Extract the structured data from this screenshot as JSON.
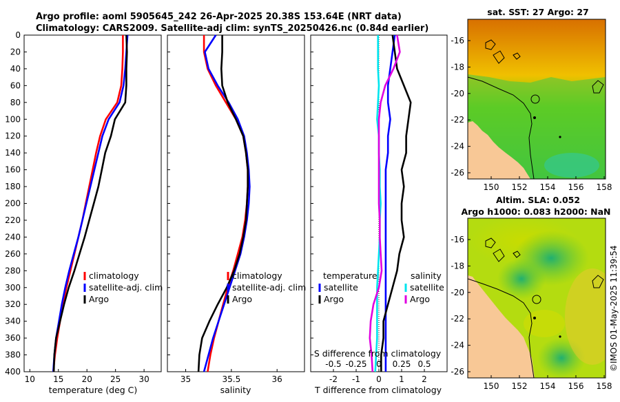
{
  "title": {
    "line1": "Argo profile: aoml 5905645_242 26-Apr-2025 20.38S 153.64E (NRT data)",
    "line2": "Climatology: CARS2009. Satellite-adj clim: synTS_20250426.nc (0.84d earlier)"
  },
  "depth_axis": {
    "range": [
      0,
      400
    ],
    "ticks": [
      "0",
      "20",
      "40",
      "60",
      "80",
      "100",
      "120",
      "140",
      "160",
      "180",
      "200",
      "220",
      "240",
      "260",
      "280",
      "300",
      "320",
      "340",
      "360",
      "380",
      "400"
    ]
  },
  "colors": {
    "red": "#ff0000",
    "blue": "#0000ff",
    "black": "#000000",
    "cyan": "#00e5ee",
    "magenta": "#e000e0",
    "ocean_high": "#f0f000",
    "land": "#f8c896"
  },
  "chart_data": [
    {
      "type": "line",
      "name": "temperature-profile",
      "xlabel": "temperature (deg C)",
      "xlim": [
        9,
        33
      ],
      "xticks": [
        "10",
        "15",
        "20",
        "25",
        "30"
      ],
      "ylabel_ticks": "depth",
      "legend": [
        "climatology",
        "satellite-adj. clim",
        "Argo"
      ],
      "series": [
        {
          "name": "climatology",
          "color": "red",
          "depth": [
            0,
            20,
            40,
            60,
            80,
            100,
            120,
            140,
            160,
            180,
            200,
            220,
            240,
            260,
            280,
            300,
            320,
            340,
            360,
            380,
            400
          ],
          "values": [
            26.3,
            26.3,
            26.2,
            26.0,
            25.3,
            23.3,
            22.3,
            21.6,
            21.0,
            20.4,
            19.8,
            19.2,
            18.5,
            17.8,
            17.1,
            16.4,
            15.8,
            15.3,
            14.8,
            14.4,
            14.1
          ]
        },
        {
          "name": "satellite-adj. clim",
          "color": "blue",
          "depth": [
            0,
            20,
            40,
            60,
            80,
            100,
            120,
            140,
            160,
            180,
            200,
            220,
            240,
            260,
            280,
            300,
            320,
            340,
            360,
            380,
            400
          ],
          "values": [
            27.1,
            26.9,
            26.7,
            26.4,
            25.7,
            23.8,
            22.7,
            22.0,
            21.3,
            20.6,
            19.9,
            19.2,
            18.5,
            17.7,
            16.9,
            16.2,
            15.6,
            15.1,
            14.6,
            14.3,
            14.1
          ]
        },
        {
          "name": "Argo",
          "color": "black",
          "depth": [
            0,
            20,
            40,
            60,
            80,
            100,
            120,
            140,
            160,
            180,
            200,
            220,
            240,
            260,
            280,
            300,
            320,
            340,
            360,
            380,
            400
          ],
          "values": [
            26.9,
            27.0,
            26.9,
            26.9,
            26.7,
            24.9,
            24.2,
            23.2,
            22.6,
            22.0,
            21.2,
            20.4,
            19.6,
            18.7,
            17.8,
            16.8,
            16.0,
            15.3,
            14.6,
            14.3,
            14.2
          ]
        }
      ]
    },
    {
      "type": "line",
      "name": "salinity-profile",
      "xlabel": "salinity",
      "xlim": [
        34.8,
        36.3
      ],
      "xticks": [
        "35",
        "35.5",
        "36"
      ],
      "legend": [
        "climatology",
        "satellite-adj. clim",
        "Argo"
      ],
      "series": [
        {
          "name": "climatology",
          "color": "red",
          "depth": [
            0,
            20,
            40,
            60,
            80,
            100,
            120,
            140,
            160,
            180,
            200,
            220,
            240,
            260,
            280,
            300,
            320,
            340,
            360,
            380,
            400
          ],
          "values": [
            35.2,
            35.2,
            35.24,
            35.33,
            35.44,
            35.55,
            35.63,
            35.66,
            35.68,
            35.68,
            35.67,
            35.65,
            35.62,
            35.57,
            35.52,
            35.46,
            35.41,
            35.36,
            35.31,
            35.27,
            35.24
          ]
        },
        {
          "name": "satellite-adj. clim",
          "color": "blue",
          "depth": [
            0,
            20,
            40,
            60,
            80,
            100,
            120,
            140,
            160,
            180,
            200,
            220,
            240,
            260,
            280,
            300,
            320,
            340,
            360,
            380,
            400
          ],
          "values": [
            35.33,
            35.21,
            35.25,
            35.35,
            35.47,
            35.57,
            35.64,
            35.67,
            35.69,
            35.7,
            35.69,
            35.67,
            35.64,
            35.6,
            35.54,
            35.48,
            35.42,
            35.36,
            35.3,
            35.25,
            35.2
          ]
        },
        {
          "name": "Argo",
          "color": "black",
          "depth": [
            0,
            20,
            40,
            60,
            80,
            100,
            120,
            140,
            160,
            180,
            200,
            220,
            240,
            260,
            280,
            300,
            320,
            340,
            360,
            380,
            400
          ],
          "values": [
            35.4,
            35.4,
            35.39,
            35.4,
            35.46,
            35.55,
            35.63,
            35.66,
            35.68,
            35.68,
            35.67,
            35.66,
            35.63,
            35.59,
            35.53,
            35.45,
            35.35,
            35.26,
            35.18,
            35.15,
            35.14
          ]
        }
      ]
    },
    {
      "type": "line",
      "name": "difference-profile",
      "xlabel": "T difference from climatology",
      "xlim": [
        -3,
        3
      ],
      "xticks": [
        "-2",
        "-1",
        "0",
        "1",
        "2"
      ],
      "top_xlabel": "S difference from climatology",
      "top_xticks": [
        "-0.5",
        "-0.25",
        "0",
        "0.25",
        "0.5"
      ],
      "legend_temperature_title": "temperature",
      "legend_salinity_title": "salinity",
      "legend_temperature": [
        "satellite",
        "Argo"
      ],
      "legend_salinity": [
        "satellite",
        "Argo"
      ],
      "series": [
        {
          "name": "T satellite",
          "color": "blue",
          "depth": [
            0,
            20,
            40,
            60,
            80,
            100,
            120,
            140,
            160,
            180,
            200,
            220,
            240,
            260,
            280,
            300,
            320,
            340,
            360,
            380,
            400
          ],
          "values": [
            0.7,
            0.6,
            0.5,
            0.4,
            0.4,
            0.5,
            0.4,
            0.4,
            0.3,
            0.3,
            0.3,
            0.3,
            0.3,
            0.3,
            0.3,
            0.3,
            0.3,
            0.3,
            0.3,
            0.3,
            0.3
          ]
        },
        {
          "name": "T Argo",
          "color": "black",
          "depth": [
            0,
            20,
            40,
            60,
            80,
            100,
            120,
            140,
            160,
            180,
            200,
            220,
            240,
            260,
            280,
            300,
            320,
            340,
            360,
            380,
            400
          ],
          "values": [
            0.6,
            0.7,
            0.8,
            1.1,
            1.4,
            1.3,
            1.2,
            1.2,
            1.0,
            1.1,
            1.0,
            1.0,
            1.1,
            0.9,
            0.8,
            0.6,
            0.4,
            0.2,
            0.2,
            0.1,
            0.1
          ]
        },
        {
          "name": "S satellite",
          "color": "cyan",
          "depth": [
            0,
            20,
            40,
            60,
            80,
            100,
            120,
            140,
            160,
            180,
            200,
            220,
            240,
            260,
            280,
            300,
            320,
            340,
            360,
            380,
            400
          ],
          "values": [
            -0.01,
            -0.01,
            -0.01,
            0.0,
            -0.01,
            -0.02,
            0.0,
            0.0,
            0.01,
            0.01,
            0.02,
            0.01,
            0.01,
            0.0,
            -0.01,
            -0.02,
            -0.02,
            -0.02,
            -0.02,
            -0.03,
            -0.04
          ]
        },
        {
          "name": "S Argo",
          "color": "magenta",
          "depth": [
            0,
            20,
            40,
            60,
            80,
            100,
            120,
            140,
            160,
            180,
            200,
            220,
            240,
            260,
            280,
            300,
            320,
            340,
            360,
            380,
            400
          ],
          "values": [
            0.2,
            0.23,
            0.16,
            0.07,
            0.02,
            0.0,
            0.0,
            0.0,
            0.0,
            0.0,
            0.0,
            0.01,
            0.01,
            0.02,
            0.03,
            0.0,
            -0.06,
            -0.09,
            -0.1,
            -0.08,
            -0.07
          ]
        }
      ]
    }
  ],
  "maps": {
    "sst": {
      "title": "sat. SST: 27 Argo: 27",
      "yticks": [
        "-16",
        "-18",
        "-20",
        "-22",
        "-24",
        "-26"
      ],
      "xticks": [
        "150",
        "152",
        "154",
        "156",
        "158"
      ]
    },
    "sla": {
      "title_line1": "Altim. SLA: 0.052",
      "title_line2": "Argo h1000: 0.083 h2000: NaN",
      "yticks": [
        "-16",
        "-18",
        "-20",
        "-22",
        "-24",
        "-26"
      ],
      "xticks": [
        "150",
        "152",
        "154",
        "156",
        "158"
      ]
    },
    "argo_position": {
      "lon": 153.64,
      "lat": -20.38
    }
  },
  "credit": "©IMOS 01-May-2025 11:39:54"
}
